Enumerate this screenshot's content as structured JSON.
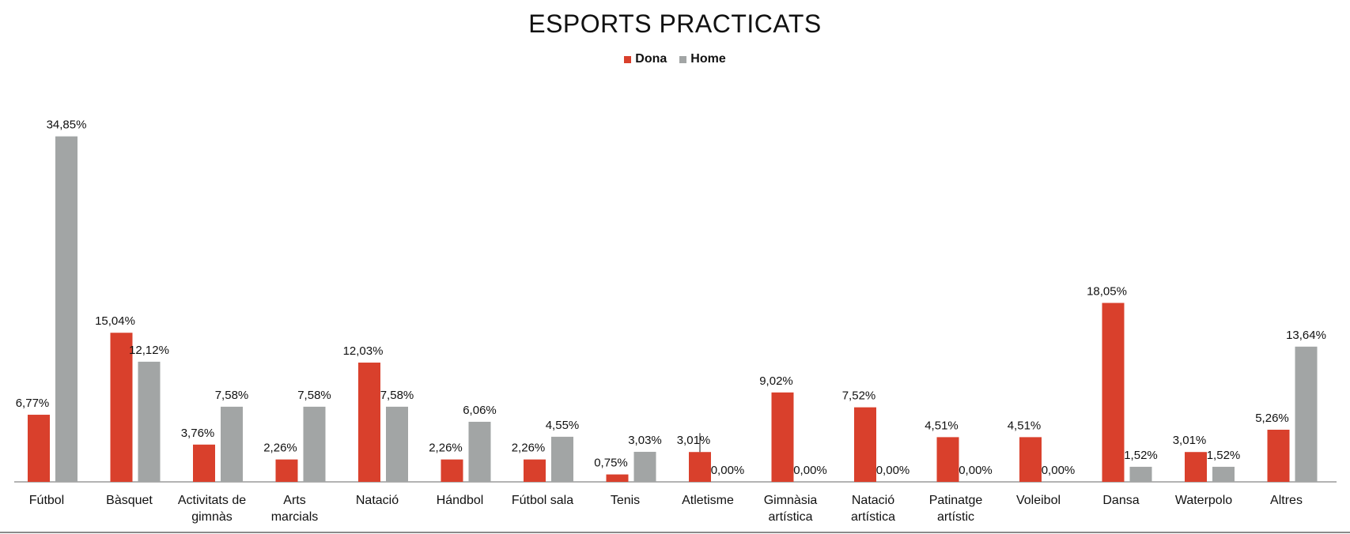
{
  "chart_data": {
    "type": "bar",
    "title": "ESPORTS PRACTICATS",
    "xlabel": "",
    "ylabel": "",
    "ylim": [
      0,
      40
    ],
    "grid": false,
    "legend_position": "top-center",
    "categories": [
      [
        "Fútbol"
      ],
      [
        "Bàsquet"
      ],
      [
        "Activitats de",
        "gimnàs"
      ],
      [
        "Arts",
        "marcials"
      ],
      [
        "Natació"
      ],
      [
        "Hándbol"
      ],
      [
        "Fútbol sala"
      ],
      [
        "Tenis"
      ],
      [
        "Atletisme"
      ],
      [
        "Gimnàsia",
        "artística"
      ],
      [
        "Natació",
        "artística"
      ],
      [
        "Patinatge",
        "artístic"
      ],
      [
        "Voleibol"
      ],
      [
        "Dansa"
      ],
      [
        "Waterpolo"
      ],
      [
        "Altres"
      ]
    ],
    "series": [
      {
        "name": "Dona",
        "color": "#d9402c",
        "values": [
          6.77,
          15.04,
          3.76,
          2.26,
          12.03,
          2.26,
          2.26,
          0.75,
          3.01,
          9.02,
          7.52,
          4.51,
          4.51,
          18.05,
          3.01,
          5.26
        ],
        "labels": [
          "6,77%",
          "15,04%",
          "3,76%",
          "2,26%",
          "12,03%",
          "2,26%",
          "2,26%",
          "0,75%",
          "3,01%",
          "9,02%",
          "7,52%",
          "4,51%",
          "4,51%",
          "18,05%",
          "3,01%",
          "5,26%"
        ]
      },
      {
        "name": "Home",
        "color": "#a2a5a5",
        "values": [
          34.85,
          12.12,
          7.58,
          7.58,
          7.58,
          6.06,
          4.55,
          3.03,
          0.0,
          0.0,
          0.0,
          0.0,
          0.0,
          1.52,
          1.52,
          13.64
        ],
        "labels": [
          "34,85%",
          "12,12%",
          "7,58%",
          "7,58%",
          "7,58%",
          "6,06%",
          "4,55%",
          "3,03%",
          "0,00%",
          "0,00%",
          "0,00%",
          "0,00%",
          "0,00%",
          "1,52%",
          "1,52%",
          "13,64%"
        ]
      }
    ]
  }
}
